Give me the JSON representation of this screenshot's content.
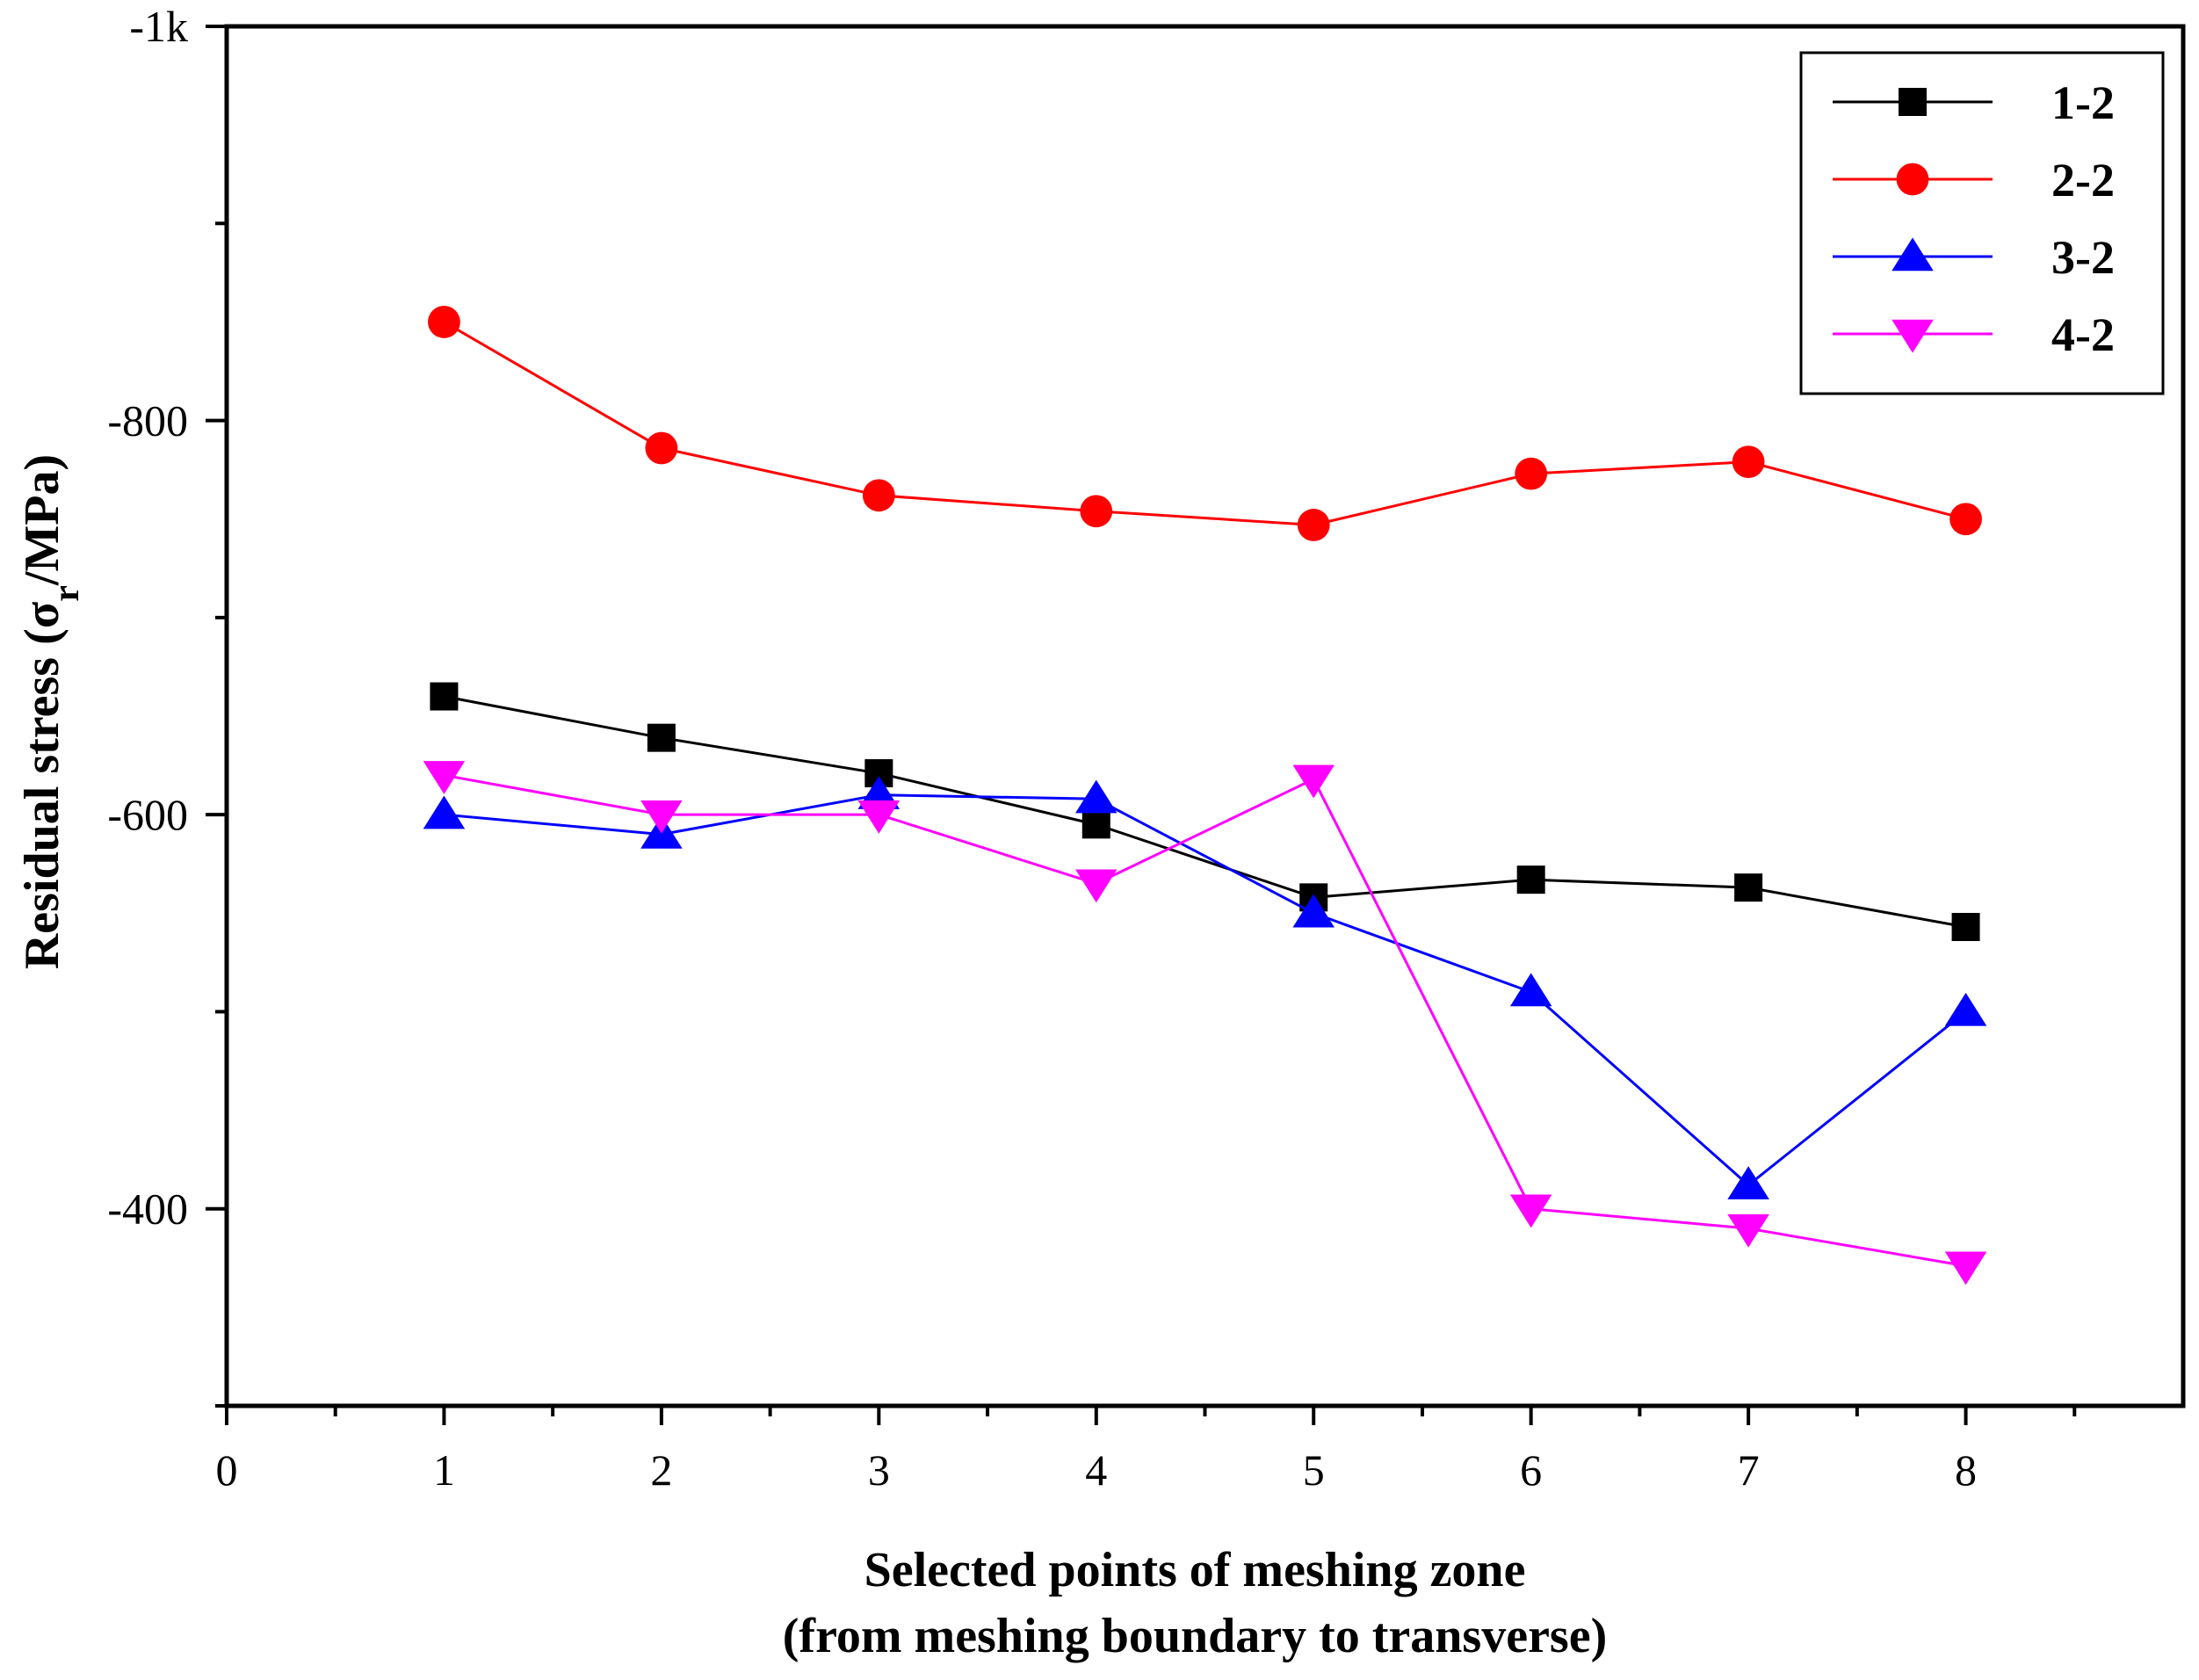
{
  "chart_data": {
    "type": "line",
    "title": "",
    "xlabel": [
      "Selected points of meshing zone",
      "(from meshing boundary to transverse)"
    ],
    "ylabel": {
      "prefix": "Residual stress  (σ",
      "subscript": "r",
      "suffix": "/MPa)"
    },
    "x": [
      1,
      2,
      3,
      4,
      5,
      6,
      7,
      8
    ],
    "xlim": [
      0,
      9
    ],
    "ylim": [
      -300,
      -1000
    ],
    "xticks": [
      0,
      1,
      2,
      3,
      4,
      5,
      6,
      7,
      8
    ],
    "xtick_labels": [
      "0",
      "1",
      "2",
      "3",
      "4",
      "5",
      "6",
      "7",
      "8"
    ],
    "yticks": [
      -400,
      -600,
      -800,
      -1000
    ],
    "ytick_labels": [
      "-400",
      "-600",
      "-800",
      "-1k"
    ],
    "legend_position": "top-right",
    "grid": false,
    "series": [
      {
        "name": "1-2",
        "color": "#000000",
        "marker": "square",
        "values": [
          -660,
          -639,
          -621,
          -595,
          -558,
          -567,
          -563,
          -543
        ]
      },
      {
        "name": "2-2",
        "color": "#ff0000",
        "marker": "circle",
        "values": [
          -850,
          -786,
          -762,
          -754,
          -747,
          -773,
          -779,
          -750
        ]
      },
      {
        "name": "3-2",
        "color": "#0000ff",
        "marker": "triangle-up",
        "values": [
          -600,
          -590,
          -610,
          -608,
          -550,
          -510,
          -412,
          -500
        ]
      },
      {
        "name": "4-2",
        "color": "#ff00ff",
        "marker": "triangle-down",
        "values": [
          -620,
          -600,
          -600,
          -565,
          -618,
          -400,
          -390,
          -371
        ]
      }
    ]
  }
}
